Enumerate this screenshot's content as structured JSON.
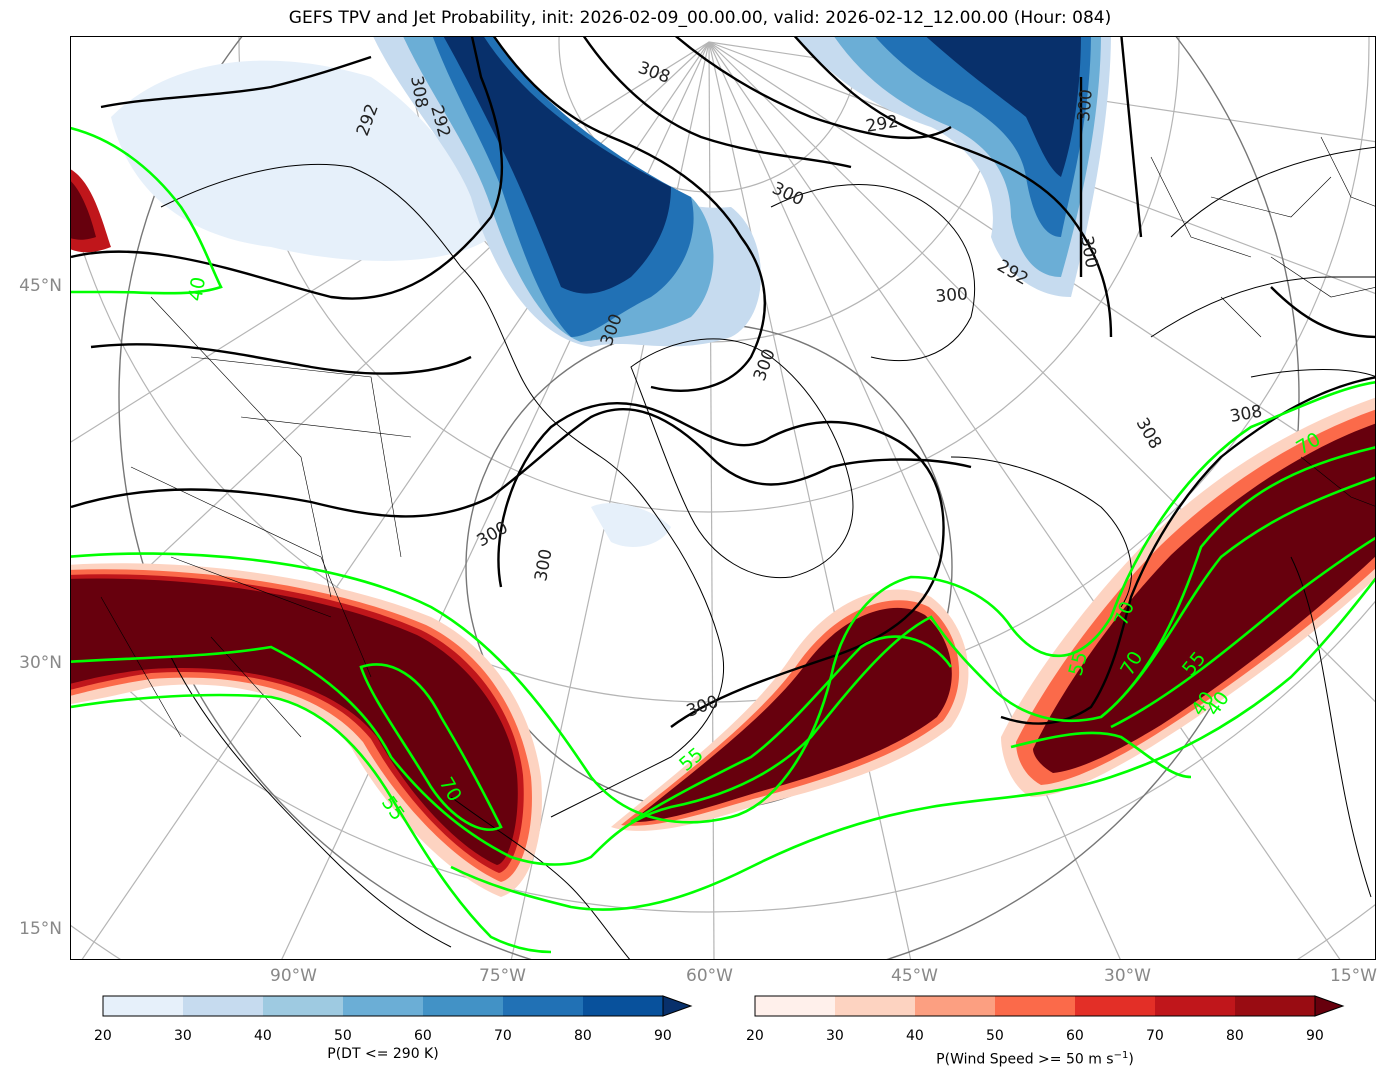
{
  "title": "GEFS TPV and Jet Probability, init: 2026-02-09_00.00.00, valid: 2026-02-12_12.00.00 (Hour: 084)",
  "lat_labels": [
    "45°N",
    "30°N",
    "15°N"
  ],
  "lon_labels": [
    "90°W",
    "75°W",
    "60°W",
    "45°W",
    "30°W",
    "15°W"
  ],
  "dt_contour_labels": [
    "308",
    "292",
    "308",
    "292",
    "300",
    "292",
    "300",
    "292",
    "300",
    "300",
    "300",
    "300",
    "308",
    "308",
    "300",
    "300",
    "300"
  ],
  "jet_contour_labels": [
    "40",
    "55",
    "70",
    "55",
    "70",
    "55",
    "40",
    "70",
    "55",
    "40",
    "70"
  ],
  "colorbar_dt": {
    "label": "P(DT <= 290 K)",
    "ticks": [
      "20",
      "30",
      "40",
      "50",
      "60",
      "70",
      "80",
      "90"
    ],
    "colors": [
      "#e6f0fa",
      "#c6dbef",
      "#9ecae1",
      "#6baed6",
      "#4292c6",
      "#2171b5",
      "#08519c",
      "#08306b"
    ]
  },
  "colorbar_wind": {
    "label_main": "P(Wind Speed >= 50 m s",
    "label_sup": "−1",
    "label_end": ")",
    "ticks": [
      "20",
      "30",
      "40",
      "50",
      "60",
      "70",
      "80",
      "90"
    ],
    "colors": [
      "#fff0eb",
      "#fdd3c1",
      "#fc9f81",
      "#fb6a4a",
      "#e32f27",
      "#c0161b",
      "#990c12",
      "#67000d"
    ]
  },
  "legend_colors": {
    "jet_contour": "#00ff00",
    "dt_contour": "#000000",
    "tpv_dark": "#08306b",
    "jet_dark": "#67000d"
  }
}
